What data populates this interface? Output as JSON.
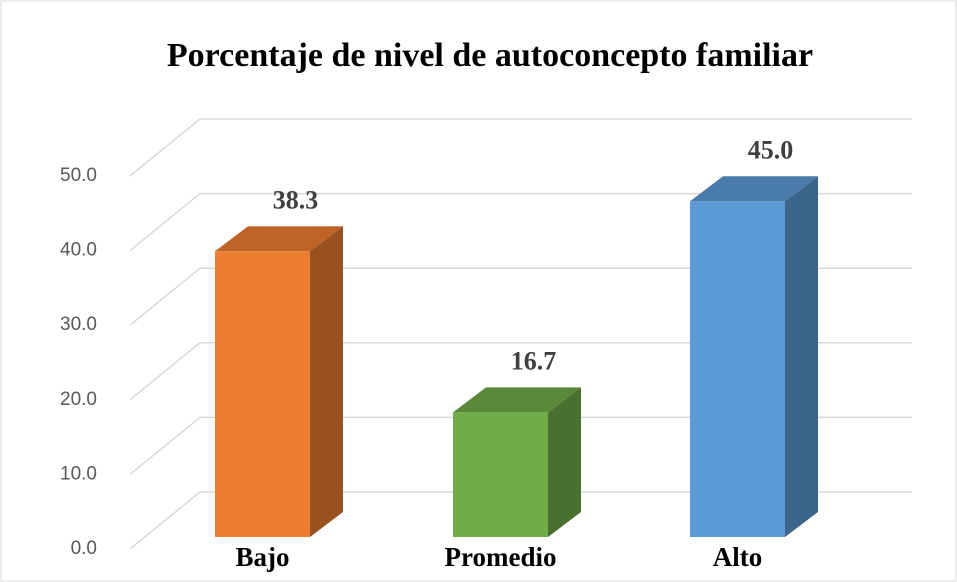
{
  "chart_data": {
    "type": "bar3d",
    "title": "Porcentaje de nivel de autoconcepto familiar",
    "categories": [
      "Bajo",
      "Promedio",
      "Alto"
    ],
    "values": [
      38.3,
      16.7,
      45.0
    ],
    "value_labels": [
      "38.3",
      "16.7",
      "45.0"
    ],
    "colors": [
      "#ed7d31",
      "#70ad47",
      "#5b9bd5"
    ],
    "ylim": [
      0,
      50
    ],
    "yticks": [
      {
        "value": 0,
        "label": "0.0"
      },
      {
        "value": 10,
        "label": "10.0"
      },
      {
        "value": 20,
        "label": "20.0"
      },
      {
        "value": 30,
        "label": "30.0"
      },
      {
        "value": 40,
        "label": "40.0"
      },
      {
        "value": 50,
        "label": "50.0"
      }
    ],
    "grid": true
  }
}
